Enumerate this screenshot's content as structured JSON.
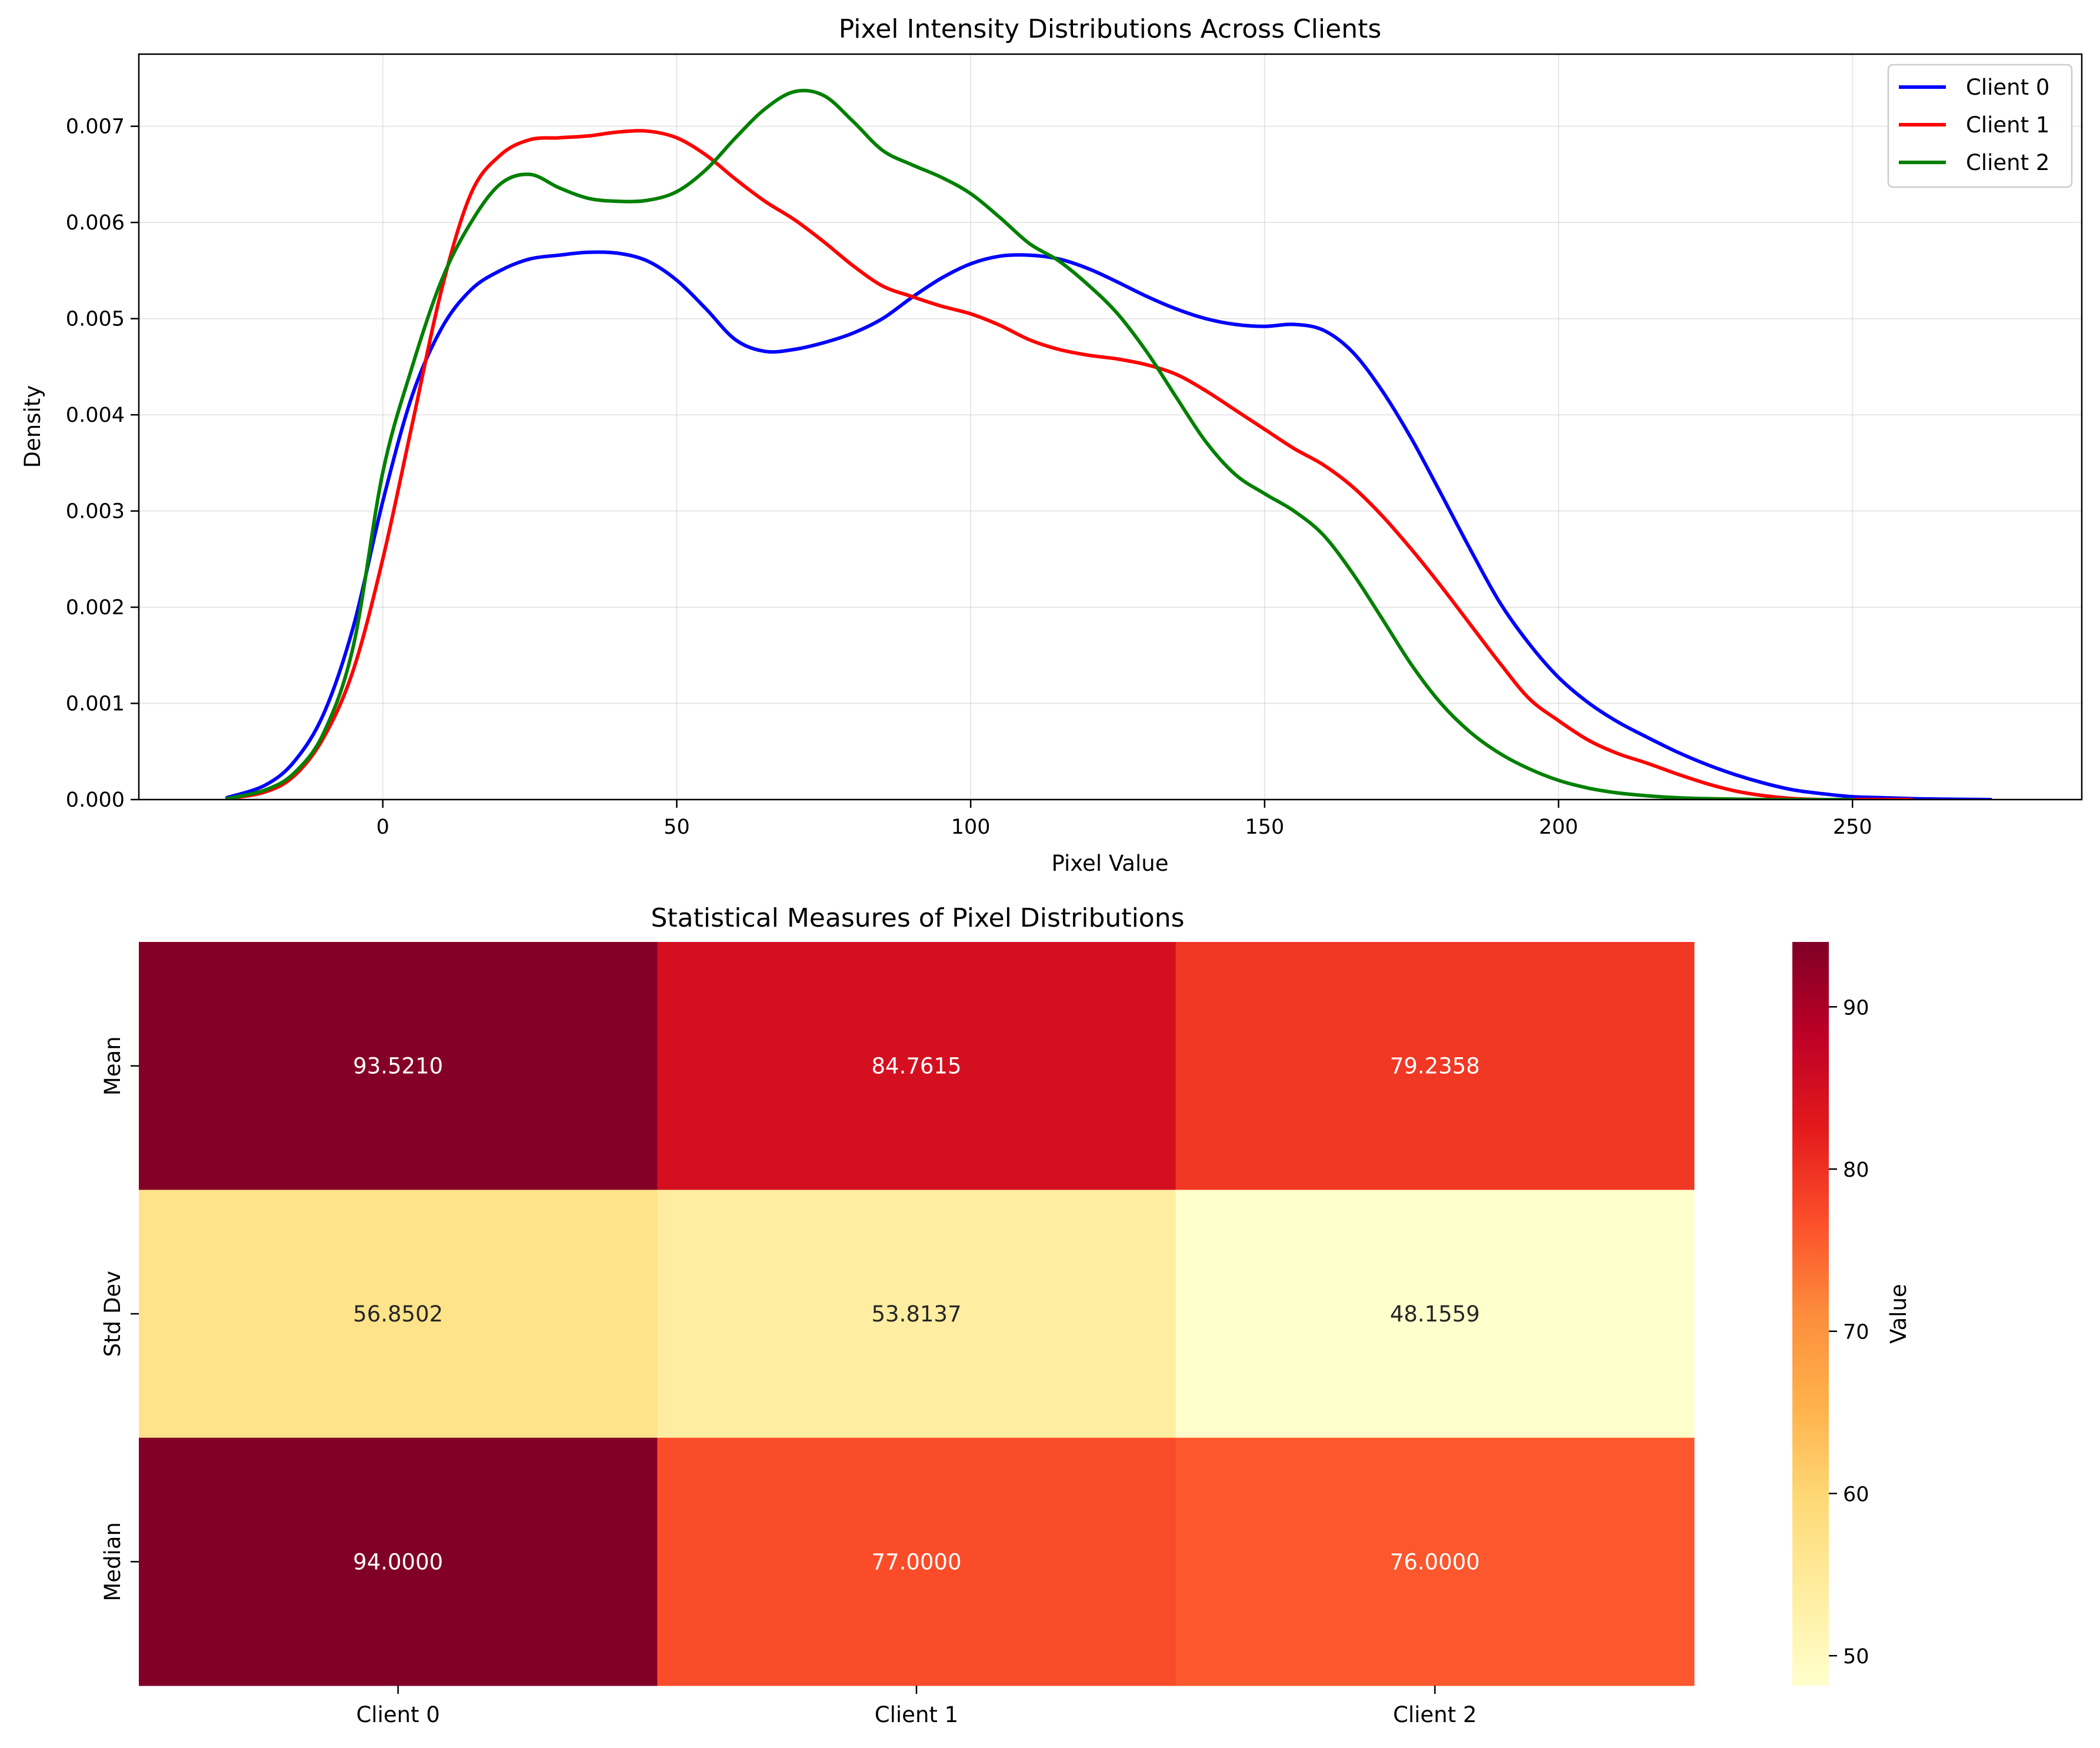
{
  "chart_data": [
    {
      "type": "line",
      "title": "Pixel Intensity Distributions Across Clients",
      "xlabel": "Pixel Value",
      "ylabel": "Density",
      "xlim": [
        -41.5,
        289
      ],
      "ylim": [
        0,
        0.00775
      ],
      "xticks": [
        0,
        50,
        100,
        150,
        200,
        250
      ],
      "yticks": [
        0,
        0.001,
        0.002,
        0.003,
        0.004,
        0.005,
        0.006,
        0.007
      ],
      "xtick_labels": [
        "0",
        "50",
        "100",
        "150",
        "200",
        "250"
      ],
      "ytick_labels": [
        "0.000",
        "0.001",
        "0.002",
        "0.003",
        "0.004",
        "0.005",
        "0.006",
        "0.007"
      ],
      "grid": true,
      "legend": "top-right",
      "series": [
        {
          "name": "Client 0",
          "color": "#0000ff",
          "x": [
            -26.5,
            -20,
            -15,
            -10,
            -5,
            0,
            5,
            10,
            15,
            20,
            25,
            30,
            35,
            40,
            45,
            50,
            55,
            60,
            65,
            70,
            75,
            80,
            85,
            90,
            95,
            100,
            105,
            110,
            115,
            120,
            125,
            130,
            135,
            140,
            145,
            150,
            155,
            160,
            165,
            170,
            175,
            180,
            185,
            190,
            195,
            200,
            205,
            210,
            215,
            220,
            225,
            230,
            235,
            240,
            245,
            250,
            255,
            260,
            265,
            273.5
          ],
          "y": [
            2e-05,
            0.00015,
            0.0004,
            0.0009,
            0.0018,
            0.0031,
            0.0042,
            0.0049,
            0.0053,
            0.0055,
            0.00562,
            0.00566,
            0.00569,
            0.00568,
            0.0056,
            0.0054,
            0.0051,
            0.00478,
            0.00466,
            0.00468,
            0.00475,
            0.00485,
            0.005,
            0.00522,
            0.00542,
            0.00557,
            0.00565,
            0.00566,
            0.00562,
            0.00552,
            0.00538,
            0.00523,
            0.0051,
            0.005,
            0.00494,
            0.00492,
            0.00494,
            0.00488,
            0.00465,
            0.00425,
            0.00375,
            0.00318,
            0.0026,
            0.00205,
            0.00162,
            0.00127,
            0.00101,
            0.00081,
            0.00065,
            0.0005,
            0.00037,
            0.00026,
            0.00017,
            0.0001,
            6e-05,
            3e-05,
            2e-05,
            1e-05,
            5e-06,
            0.0
          ]
        },
        {
          "name": "Client 1",
          "color": "#ff0000",
          "x": [
            -26.5,
            -20,
            -15,
            -10,
            -5,
            0,
            5,
            10,
            15,
            20,
            25,
            30,
            35,
            40,
            45,
            50,
            55,
            60,
            65,
            70,
            75,
            80,
            85,
            90,
            95,
            100,
            105,
            110,
            115,
            120,
            125,
            130,
            135,
            140,
            145,
            150,
            155,
            160,
            165,
            170,
            175,
            180,
            185,
            190,
            195,
            200,
            205,
            210,
            215,
            220,
            225,
            230,
            235,
            240,
            245,
            250,
            255,
            260
          ],
          "y": [
            1e-05,
            8e-05,
            0.00025,
            0.00065,
            0.00135,
            0.0025,
            0.0039,
            0.0053,
            0.0063,
            0.0067,
            0.00686,
            0.00688,
            0.0069,
            0.00694,
            0.00695,
            0.00688,
            0.0067,
            0.00645,
            0.00622,
            0.00603,
            0.0058,
            0.00555,
            0.00534,
            0.00523,
            0.00513,
            0.00505,
            0.00493,
            0.00478,
            0.00468,
            0.00462,
            0.00458,
            0.00452,
            0.00442,
            0.00425,
            0.00405,
            0.00385,
            0.00365,
            0.00348,
            0.00325,
            0.00295,
            0.0026,
            0.00222,
            0.00182,
            0.00142,
            0.00105,
            0.00082,
            0.00062,
            0.00048,
            0.00038,
            0.00027,
            0.00017,
            9e-05,
            4e-05,
            1e-05,
            0.0,
            0.0,
            0.0,
            0.0
          ]
        },
        {
          "name": "Client 2",
          "color": "#008000",
          "x": [
            -26.5,
            -20,
            -15,
            -10,
            -5,
            0,
            5,
            10,
            15,
            20,
            25,
            30,
            35,
            40,
            45,
            50,
            55,
            60,
            65,
            70,
            75,
            80,
            85,
            90,
            95,
            100,
            105,
            110,
            115,
            120,
            125,
            130,
            135,
            140,
            145,
            150,
            155,
            160,
            165,
            170,
            175,
            180,
            185,
            190,
            195,
            200,
            205,
            210,
            215,
            220,
            225,
            230,
            235,
            240,
            245,
            250
          ],
          "y": [
            1e-05,
            0.0001,
            0.00028,
            0.0007,
            0.0016,
            0.0034,
            0.0045,
            0.0054,
            0.006,
            0.0064,
            0.0065,
            0.00636,
            0.00625,
            0.00622,
            0.00623,
            0.00632,
            0.00655,
            0.00688,
            0.00718,
            0.00736,
            0.00732,
            0.00705,
            0.00675,
            0.0066,
            0.00647,
            0.0063,
            0.00605,
            0.00578,
            0.0056,
            0.00535,
            0.00505,
            0.00465,
            0.00418,
            0.00372,
            0.00338,
            0.00318,
            0.003,
            0.00275,
            0.00235,
            0.00188,
            0.0014,
            0.001,
            0.0007,
            0.00048,
            0.00032,
            0.0002,
            0.00012,
            7e-05,
            4e-05,
            2e-05,
            1e-05,
            5e-06,
            0.0,
            0.0,
            0.0,
            0.0
          ]
        }
      ]
    },
    {
      "type": "heatmap",
      "title": "Statistical Measures of Pixel Distributions",
      "rows": [
        "Mean",
        "Std Dev",
        "Median"
      ],
      "columns": [
        "Client 0",
        "Client 1",
        "Client 2"
      ],
      "values": [
        [
          93.521,
          84.7615,
          79.2358
        ],
        [
          56.8502,
          53.8137,
          48.1559
        ],
        [
          94.0,
          77.0,
          76.0
        ]
      ],
      "annotations": [
        [
          "93.5210",
          "84.7615",
          "79.2358"
        ],
        [
          "56.8502",
          "53.8137",
          "48.1559"
        ],
        [
          "94.0000",
          "77.0000",
          "76.0000"
        ]
      ],
      "colormap": "YlOrRd",
      "colorbar": {
        "label": "Value",
        "range": [
          48.1559,
          94.0
        ],
        "ticks": [
          50,
          60,
          70,
          80,
          90
        ],
        "tick_labels": [
          "50",
          "60",
          "70",
          "80",
          "90"
        ]
      }
    }
  ]
}
